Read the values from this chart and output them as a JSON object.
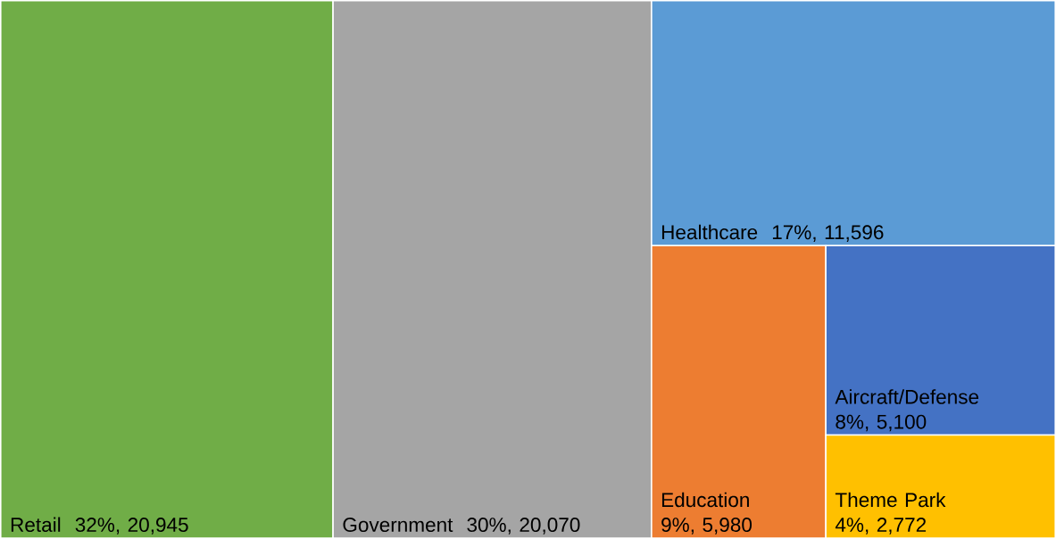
{
  "chart_data": {
    "type": "other",
    "categories": [
      "Retail",
      "Government",
      "Healthcare",
      "Education",
      "Aircraft/Defense",
      "Theme Park"
    ],
    "values": [
      20945,
      20070,
      11596,
      5980,
      5100,
      2772
    ],
    "value_labels": [
      "32%,  20,945",
      "30%,  20,070",
      "17%,  11,596",
      "9%,  5,980",
      "8%,  5,100",
      "4%,  2,772"
    ],
    "colors": [
      "#70ad47",
      "#a5a5a5",
      "#5b9bd5",
      "#ed7d31",
      "#4472c4",
      "#ffc000"
    ]
  }
}
